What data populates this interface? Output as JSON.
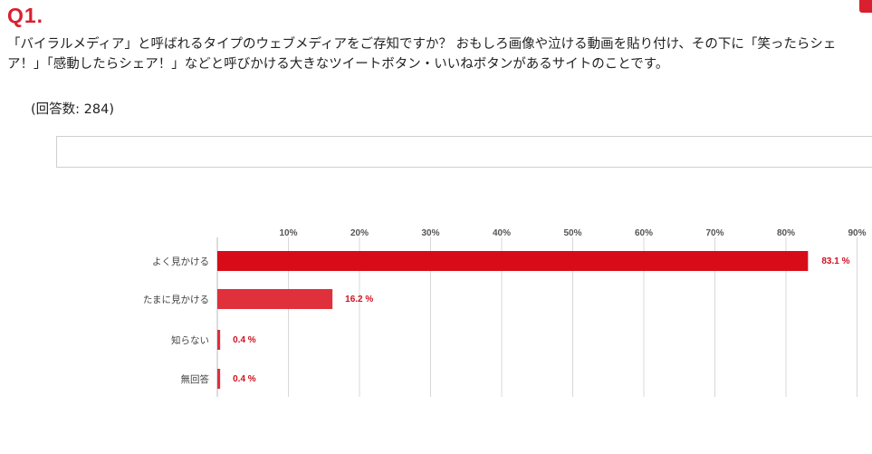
{
  "question": {
    "number": "Q1.",
    "text": "「バイラルメディア」と呼ばれるタイプのウェブメディアをご存知ですか？ おもしろ画像や泣ける動画を貼り付け、その下に「笑ったらシェア！」「感動したらシェア！」などと呼びかける大きなツイートボタン・いいねボタンがあるサイトのことです。",
    "responses": "(回答数: 284)"
  },
  "colors": {
    "accent": "#d9202e",
    "bar_primary": "#d80c18",
    "bar_secondary": "#e0303c",
    "value_text": "#d01020",
    "grid": "#d8d8d8"
  },
  "chart_data": {
    "type": "bar",
    "orientation": "horizontal",
    "categories": [
      "よく見かける",
      "たまに見かける",
      "知らない",
      "無回答"
    ],
    "values": [
      83.1,
      16.2,
      0.4,
      0.4
    ],
    "value_labels": [
      "83.1 %",
      "16.2 %",
      "0.4 %",
      "0.4 %"
    ],
    "xlim": [
      0,
      90
    ],
    "ticks": [
      10,
      20,
      30,
      40,
      50,
      60,
      70,
      80,
      90
    ],
    "tick_labels": [
      "10%",
      "20%",
      "30%",
      "40%",
      "50%",
      "60%",
      "70%",
      "80%",
      "90%"
    ],
    "grid": true
  }
}
